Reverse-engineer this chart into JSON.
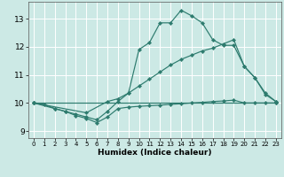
{
  "xlabel": "Humidex (Indice chaleur)",
  "bg_color": "#cce9e5",
  "line_color": "#2d7b6e",
  "grid_color": "#ffffff",
  "xlim": [
    -0.5,
    23.5
  ],
  "ylim": [
    8.75,
    13.6
  ],
  "yticks": [
    9,
    10,
    11,
    12,
    13
  ],
  "xticks": [
    0,
    1,
    2,
    3,
    4,
    5,
    6,
    7,
    8,
    9,
    10,
    11,
    12,
    13,
    14,
    15,
    16,
    17,
    18,
    19,
    20,
    21,
    22,
    23
  ],
  "series": [
    {
      "x": [
        0,
        1,
        2,
        3,
        4,
        5,
        6,
        7,
        8,
        9,
        10,
        11,
        12,
        13,
        14,
        15,
        16,
        17,
        18,
        19,
        20,
        21,
        22,
        23
      ],
      "y": [
        10.0,
        9.95,
        9.8,
        9.7,
        9.55,
        9.45,
        9.3,
        9.5,
        9.8,
        9.85,
        9.88,
        9.9,
        9.92,
        9.95,
        9.97,
        10.0,
        10.02,
        10.05,
        10.07,
        10.1,
        10.0,
        10.0,
        10.0,
        10.0
      ]
    },
    {
      "x": [
        0,
        2,
        3,
        4,
        5,
        6,
        7,
        8,
        9,
        10,
        11,
        12,
        13,
        14,
        15,
        16,
        17,
        18,
        19,
        20,
        21,
        22,
        23
      ],
      "y": [
        10.0,
        9.8,
        9.7,
        9.6,
        9.5,
        9.4,
        9.7,
        10.05,
        10.35,
        11.9,
        12.15,
        12.85,
        12.85,
        13.3,
        13.1,
        12.85,
        12.25,
        12.05,
        12.05,
        11.3,
        10.9,
        10.35,
        10.05
      ]
    },
    {
      "x": [
        0,
        5,
        7,
        8,
        9,
        10,
        11,
        12,
        13,
        14,
        15,
        16,
        17,
        18,
        19,
        20,
        21,
        22,
        23
      ],
      "y": [
        10.0,
        9.65,
        10.05,
        10.15,
        10.35,
        10.6,
        10.85,
        11.1,
        11.35,
        11.55,
        11.7,
        11.85,
        11.95,
        12.1,
        12.25,
        11.3,
        10.9,
        10.3,
        10.05
      ]
    },
    {
      "x": [
        0,
        23
      ],
      "y": [
        10.0,
        10.0
      ]
    }
  ]
}
